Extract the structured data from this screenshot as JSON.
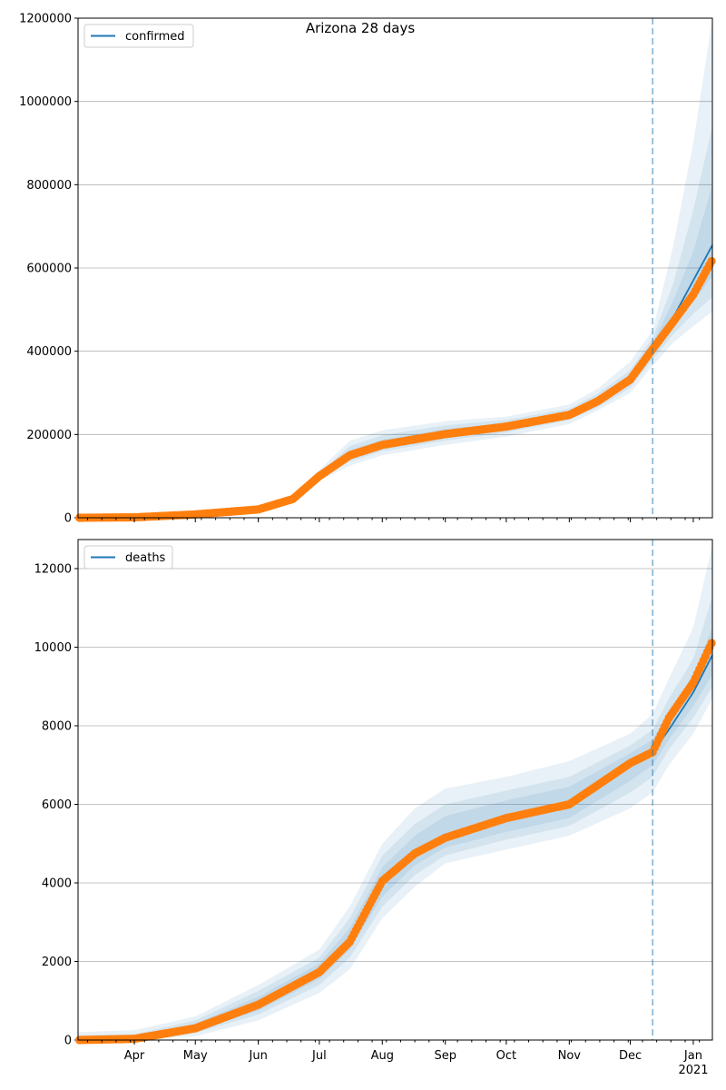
{
  "chart_data": [
    {
      "type": "line",
      "title": "Arizona 28 days",
      "legend": {
        "label": "confirmed",
        "placement": "top-left"
      },
      "x_unit": "day of year 2020",
      "xlim": [
        64.3,
        376.4
      ],
      "ylim": [
        0,
        1200000
      ],
      "yticks": [
        0,
        200000,
        400000,
        600000,
        800000,
        1000000,
        1200000
      ],
      "ytick_labels": [
        "0",
        "200000",
        "400000",
        "600000",
        "800000",
        "1000000",
        "1200000"
      ],
      "grid": "y",
      "forecast_start_day": 347,
      "days": [
        64,
        92,
        122,
        153,
        170,
        183,
        198,
        214,
        245,
        275,
        306,
        320,
        336,
        347,
        357,
        367,
        376.4
      ],
      "observed": [
        0,
        1000,
        8000,
        20000,
        45000,
        100000,
        150000,
        175000,
        201000,
        219000,
        247000,
        280000,
        332000,
        405000,
        470000,
        536000,
        620000
      ],
      "median": [
        0,
        1000,
        8000,
        20000,
        45000,
        100000,
        150000,
        175000,
        201000,
        219000,
        247000,
        280000,
        332000,
        405000,
        480000,
        570000,
        655000
      ],
      "bands": [
        {
          "lo": [
            0,
            0,
            5000,
            15000,
            38000,
            88000,
            125000,
            150000,
            175000,
            195000,
            225000,
            258000,
            300000,
            365000,
            420000,
            460000,
            495000
          ],
          "hi": [
            2000,
            3000,
            12000,
            26000,
            55000,
            115000,
            185000,
            210000,
            232000,
            243000,
            272000,
            310000,
            375000,
            450000,
            650000,
            900000,
            1200000
          ]
        },
        {
          "lo": [
            0,
            500,
            6000,
            17000,
            41000,
            93000,
            135000,
            160000,
            185000,
            205000,
            235000,
            265000,
            312000,
            380000,
            440000,
            490000,
            530000
          ],
          "hi": [
            1500,
            2000,
            10000,
            24000,
            51000,
            108000,
            172000,
            198000,
            222000,
            235000,
            262000,
            298000,
            355000,
            432000,
            560000,
            740000,
            940000
          ]
        },
        {
          "lo": [
            0,
            800,
            7000,
            18000,
            43000,
            96000,
            142000,
            165000,
            192000,
            211000,
            240000,
            272000,
            320000,
            390000,
            455000,
            520000,
            580000
          ],
          "hi": [
            1000,
            1500,
            9000,
            22000,
            48000,
            104000,
            162000,
            188000,
            213000,
            228000,
            255000,
            290000,
            345000,
            420000,
            520000,
            640000,
            800000
          ]
        }
      ]
    },
    {
      "type": "line",
      "title": "",
      "legend": {
        "label": "deaths",
        "placement": "top-left"
      },
      "x_unit": "day of year 2020",
      "xlim": [
        64.3,
        376.4
      ],
      "ylim": [
        0,
        12740
      ],
      "yticks": [
        0,
        2000,
        4000,
        6000,
        8000,
        10000,
        12000
      ],
      "ytick_labels": [
        "0",
        "2000",
        "4000",
        "6000",
        "8000",
        "10000",
        "12000"
      ],
      "grid": "y",
      "forecast_start_day": 347,
      "xticks": [
        92,
        122,
        153,
        183,
        214,
        245,
        275,
        306,
        336,
        367
      ],
      "xtick_labels": [
        "Apr",
        "May",
        "Jun",
        "Jul",
        "Aug",
        "Sep",
        "Oct",
        "Nov",
        "Dec",
        "Jan"
      ],
      "xtick_year_label": "2021",
      "days": [
        64,
        92,
        122,
        153,
        183,
        198,
        214,
        230,
        245,
        275,
        306,
        336,
        347,
        355,
        367,
        376.4
      ],
      "observed": [
        0,
        30,
        300,
        900,
        1730,
        2500,
        4050,
        4750,
        5150,
        5650,
        6000,
        7050,
        7330,
        8200,
        9100,
        10150
      ],
      "median": [
        0,
        30,
        300,
        900,
        1730,
        2500,
        4050,
        4750,
        5150,
        5650,
        6000,
        7050,
        7330,
        7900,
        8850,
        9800
      ],
      "bands": [
        {
          "lo": [
            0,
            0,
            100,
            500,
            1200,
            1800,
            3100,
            3900,
            4500,
            4850,
            5200,
            5900,
            6300,
            7000,
            7800,
            8700
          ],
          "hi": [
            200,
            250,
            600,
            1400,
            2300,
            3400,
            5000,
            5900,
            6400,
            6700,
            7100,
            7800,
            8300,
            9200,
            10500,
            12600
          ]
        },
        {
          "lo": [
            0,
            0,
            180,
            650,
            1400,
            2100,
            3400,
            4200,
            4700,
            5100,
            5450,
            6300,
            6700,
            7400,
            8200,
            9000
          ],
          "hi": [
            120,
            150,
            500,
            1250,
            2100,
            3100,
            4700,
            5500,
            6000,
            6350,
            6700,
            7500,
            7900,
            8700,
            9700,
            11300
          ]
        },
        {
          "lo": [
            0,
            0,
            240,
            750,
            1550,
            2300,
            3650,
            4450,
            4900,
            5300,
            5650,
            6600,
            7000,
            7650,
            8500,
            9300
          ],
          "hi": [
            60,
            80,
            420,
            1100,
            1950,
            2850,
            4400,
            5200,
            5700,
            6100,
            6450,
            7300,
            7650,
            8350,
            9300,
            10500
          ]
        }
      ]
    }
  ],
  "colors": {
    "median": "#1f77b4",
    "observed": "#ff7f0e",
    "band": "#1f77b4",
    "grid": "#b0b0b0"
  }
}
